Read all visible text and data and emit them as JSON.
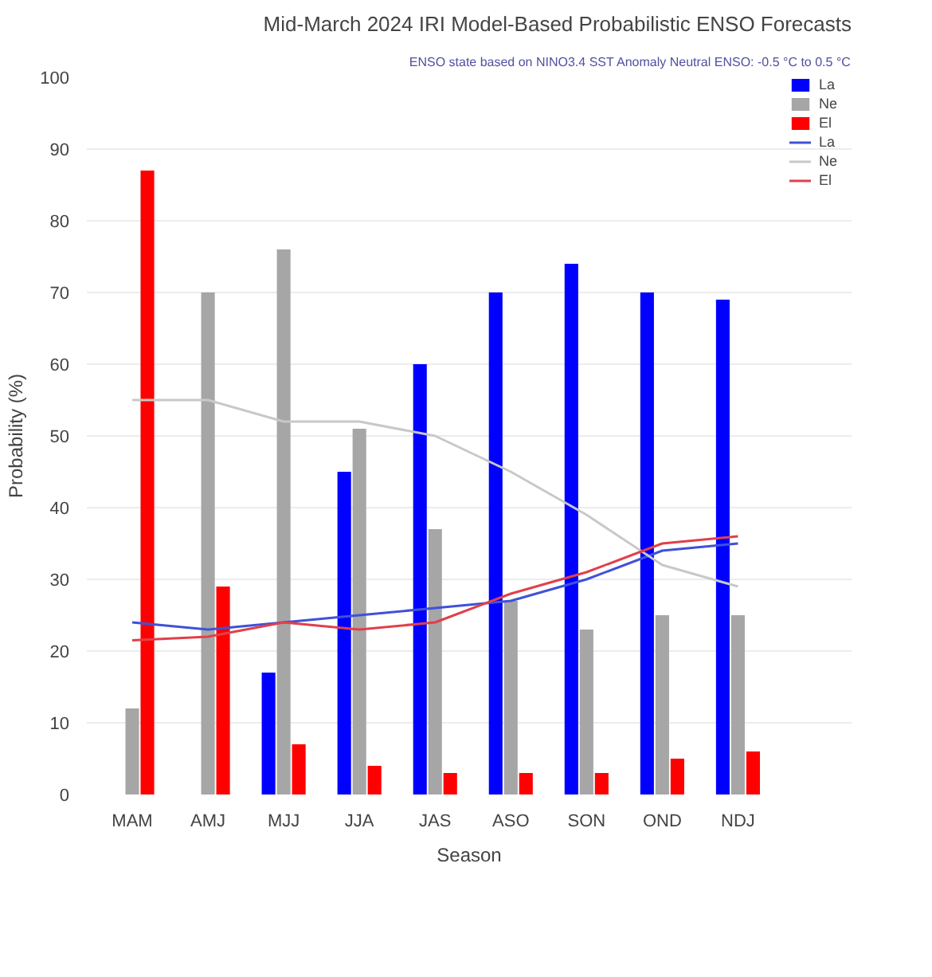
{
  "chart_data": {
    "type": "bar",
    "title": "Mid-March 2024 IRI Model-Based Probabilistic ENSO Forecasts",
    "subtitle": "ENSO state based on NINO3.4 SST Anomaly Neutral ENSO: -0.5 °C to 0.5 °C",
    "xlabel": "Season",
    "ylabel": "Probability (%)",
    "categories": [
      "MAM",
      "AMJ",
      "MJJ",
      "JJA",
      "JAS",
      "ASO",
      "SON",
      "OND",
      "NDJ"
    ],
    "series": [
      {
        "name": "La",
        "color": "#0000ff",
        "values": [
          0,
          0,
          17,
          45,
          60,
          70,
          74,
          70,
          69
        ]
      },
      {
        "name": "Ne",
        "color": "#a6a6a6",
        "values": [
          12,
          70,
          76,
          51,
          37,
          27,
          23,
          25,
          25
        ]
      },
      {
        "name": "El",
        "color": "#ff0000",
        "values": [
          87,
          29,
          7,
          4,
          3,
          3,
          3,
          5,
          6
        ]
      },
      {
        "name": "La",
        "type": "line",
        "color": "#3f51d8",
        "values": [
          24,
          23,
          24,
          25,
          26,
          27,
          30,
          34,
          35
        ]
      },
      {
        "name": "Ne",
        "type": "line",
        "color": "#c8c8c8",
        "values": [
          55,
          55,
          52,
          52,
          50,
          45,
          39,
          32,
          29
        ]
      },
      {
        "name": "El",
        "type": "line",
        "color": "#e0404a",
        "values": [
          21.5,
          22,
          24,
          23,
          24,
          28,
          31,
          35,
          36
        ]
      }
    ],
    "ylim": [
      0,
      100
    ],
    "yticks": [
      0,
      10,
      20,
      30,
      40,
      50,
      60,
      70,
      80,
      90,
      100
    ],
    "grid": "y",
    "legend": "top right"
  }
}
